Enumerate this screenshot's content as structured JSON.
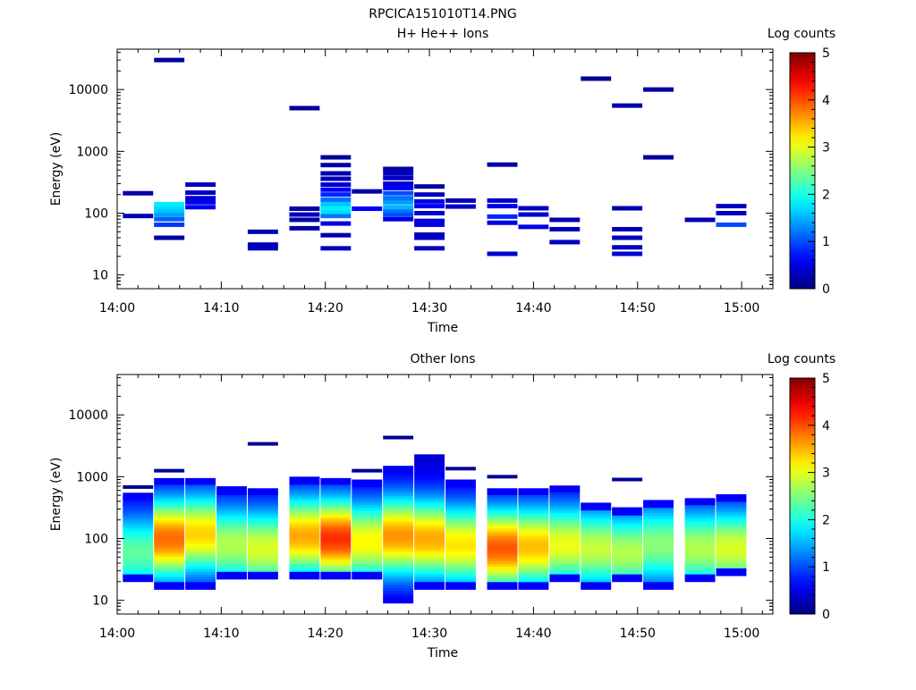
{
  "figure": {
    "title": "RPCICA151010T14.PNG"
  },
  "chart_data": [
    {
      "type": "heatmap",
      "title": "H+ He++ Ions",
      "xlabel": "Time",
      "ylabel": "Energy (eV)",
      "xlim": [
        "14:00",
        "15:03"
      ],
      "xticks": [
        "14:00",
        "14:10",
        "14:20",
        "14:30",
        "14:40",
        "14:50",
        "15:00"
      ],
      "ylim": [
        6,
        45000
      ],
      "yscale": "log",
      "yticks": [
        "10",
        "100",
        "1000",
        "10000"
      ],
      "colorbar": {
        "label": "Log counts",
        "range": [
          0,
          5
        ],
        "ticks": [
          "0",
          "1",
          "2",
          "3",
          "4",
          "5"
        ]
      },
      "time_bins": [
        "14:02",
        "14:05",
        "14:08",
        "14:11",
        "14:14",
        "14:18",
        "14:21",
        "14:24",
        "14:27",
        "14:30",
        "14:33",
        "14:37",
        "14:40",
        "14:43",
        "14:46",
        "14:49",
        "14:52",
        "14:56",
        "14:59",
        "15:02"
      ],
      "columns": [
        {
          "bin": 0,
          "cells": [
            [
              90,
              0.25
            ],
            [
              210,
              0.2
            ]
          ]
        },
        {
          "bin": 1,
          "cells": [
            [
              40,
              0.15
            ],
            [
              65,
              0.9
            ],
            [
              80,
              1.1
            ],
            [
              95,
              1.4
            ],
            [
              110,
              1.6
            ],
            [
              125,
              1.7
            ],
            [
              140,
              1.8
            ],
            [
              30000,
              0.15
            ]
          ]
        },
        {
          "bin": 2,
          "cells": [
            [
              125,
              0.6
            ],
            [
              150,
              0.5
            ],
            [
              175,
              0.45
            ],
            [
              215,
              0.35
            ],
            [
              290,
              0.3
            ]
          ]
        },
        {
          "bin": 4,
          "cells": [
            [
              27,
              0.3
            ],
            [
              31,
              0.25
            ],
            [
              50,
              0.25
            ]
          ]
        },
        {
          "bin": 5,
          "cells": [
            [
              57,
              0.2
            ],
            [
              78,
              0.2
            ],
            [
              95,
              0.25
            ],
            [
              118,
              0.2
            ],
            [
              5000,
              0.1
            ]
          ]
        },
        {
          "bin": 6,
          "cells": [
            [
              27,
              0.3
            ],
            [
              44,
              0.2
            ],
            [
              68,
              0.5
            ],
            [
              90,
              1.2
            ],
            [
              105,
              1.7
            ],
            [
              120,
              1.8
            ],
            [
              140,
              1.6
            ],
            [
              165,
              1.2
            ],
            [
              200,
              0.8
            ],
            [
              240,
              0.6
            ],
            [
              290,
              0.4
            ],
            [
              360,
              0.3
            ],
            [
              440,
              0.25
            ],
            [
              600,
              0.2
            ],
            [
              800,
              0.15
            ]
          ]
        },
        {
          "bin": 7,
          "cells": [
            [
              118,
              0.6
            ],
            [
              225,
              0.2
            ]
          ]
        },
        {
          "bin": 8,
          "cells": [
            [
              80,
              0.5
            ],
            [
              95,
              1.0
            ],
            [
              110,
              1.2
            ],
            [
              125,
              1.5
            ],
            [
              150,
              1.4
            ],
            [
              175,
              1.2
            ],
            [
              210,
              1.0
            ],
            [
              255,
              0.6
            ],
            [
              300,
              0.4
            ],
            [
              370,
              0.3
            ],
            [
              440,
              0.3
            ],
            [
              520,
              0.2
            ]
          ]
        },
        {
          "bin": 9,
          "cells": [
            [
              27,
              0.3
            ],
            [
              40,
              0.35
            ],
            [
              45,
              0.3
            ],
            [
              65,
              0.5
            ],
            [
              75,
              0.45
            ],
            [
              100,
              0.4
            ],
            [
              130,
              0.55
            ],
            [
              155,
              0.5
            ],
            [
              200,
              0.3
            ],
            [
              270,
              0.2
            ]
          ]
        },
        {
          "bin": 10,
          "cells": [
            [
              128,
              0.35
            ],
            [
              160,
              0.3
            ]
          ]
        },
        {
          "bin": 11,
          "cells": [
            [
              22,
              0.4
            ],
            [
              70,
              0.5
            ],
            [
              88,
              0.8
            ],
            [
              130,
              0.5
            ],
            [
              160,
              0.4
            ],
            [
              610,
              0.2
            ]
          ]
        },
        {
          "bin": 12,
          "cells": [
            [
              60,
              0.5
            ],
            [
              95,
              0.4
            ],
            [
              120,
              0.3
            ]
          ]
        },
        {
          "bin": 13,
          "cells": [
            [
              34,
              0.3
            ],
            [
              55,
              0.25
            ],
            [
              78,
              0.25
            ]
          ]
        },
        {
          "bin": 14,
          "cells": [
            [
              15000,
              0.1
            ]
          ]
        },
        {
          "bin": 15,
          "cells": [
            [
              22,
              0.4
            ],
            [
              28,
              0.3
            ],
            [
              40,
              0.3
            ],
            [
              55,
              0.25
            ],
            [
              120,
              0.25
            ],
            [
              5500,
              0.2
            ]
          ]
        },
        {
          "bin": 16,
          "cells": [
            [
              800,
              0.15
            ],
            [
              10000,
              0.15
            ]
          ]
        },
        {
          "bin": 17,
          "cells": [
            [
              78,
              0.25
            ]
          ]
        },
        {
          "bin": 18,
          "cells": [
            [
              65,
              1.0
            ],
            [
              100,
              0.3
            ],
            [
              130,
              0.3
            ]
          ]
        }
      ]
    },
    {
      "type": "heatmap",
      "title": "Other Ions",
      "xlabel": "Time",
      "ylabel": "Energy (eV)",
      "xlim": [
        "14:00",
        "15:03"
      ],
      "xticks": [
        "14:00",
        "14:10",
        "14:20",
        "14:30",
        "14:40",
        "14:50",
        "15:00"
      ],
      "ylim": [
        6,
        45000
      ],
      "yscale": "log",
      "yticks": [
        "10",
        "100",
        "1000",
        "10000"
      ],
      "colorbar": {
        "label": "Log counts",
        "range": [
          0,
          5
        ],
        "ticks": [
          "0",
          "1",
          "2",
          "3",
          "4",
          "5"
        ]
      },
      "time_bins": [
        "14:02",
        "14:05",
        "14:08",
        "14:11",
        "14:14",
        "14:18",
        "14:21",
        "14:24",
        "14:27",
        "14:30",
        "14:33",
        "14:37",
        "14:40",
        "14:43",
        "14:46",
        "14:49",
        "14:52",
        "14:56",
        "14:59",
        "15:02"
      ],
      "columns": [
        {
          "bin": 0,
          "emin": 20,
          "emax": 550,
          "peak": 2.0,
          "epeak": 60,
          "extra": [
            [
              680,
              0.1
            ]
          ]
        },
        {
          "bin": 1,
          "emin": 15,
          "emax": 950,
          "peak": 3.5,
          "epeak": 100,
          "extra": [
            [
              1250,
              0.15
            ]
          ]
        },
        {
          "bin": 2,
          "emin": 15,
          "emax": 950,
          "peak": 3.0,
          "epeak": 120,
          "extra": []
        },
        {
          "bin": 3,
          "emin": 22,
          "emax": 700,
          "peak": 2.4,
          "epeak": 80,
          "extra": []
        },
        {
          "bin": 4,
          "emin": 22,
          "emax": 650,
          "peak": 2.6,
          "epeak": 70,
          "extra": [
            [
              3400,
              0.1
            ]
          ]
        },
        {
          "bin": 5,
          "emin": 22,
          "emax": 1000,
          "peak": 3.2,
          "epeak": 110,
          "extra": []
        },
        {
          "bin": 6,
          "emin": 22,
          "emax": 950,
          "peak": 3.8,
          "epeak": 100,
          "extra": []
        },
        {
          "bin": 7,
          "emin": 22,
          "emax": 900,
          "peak": 2.8,
          "epeak": 90,
          "extra": [
            [
              1250,
              0.1
            ]
          ]
        },
        {
          "bin": 8,
          "emin": 9,
          "emax": 1500,
          "peak": 3.3,
          "epeak": 110,
          "extra": [
            [
              4300,
              0.1
            ]
          ]
        },
        {
          "bin": 9,
          "emin": 15,
          "emax": 2300,
          "peak": 3.2,
          "epeak": 100,
          "extra": []
        },
        {
          "bin": 10,
          "emin": 15,
          "emax": 900,
          "peak": 2.9,
          "epeak": 80,
          "extra": [
            [
              1350,
              0.1
            ]
          ]
        },
        {
          "bin": 11,
          "emin": 15,
          "emax": 650,
          "peak": 3.6,
          "epeak": 70,
          "extra": [
            [
              1000,
              0.1
            ]
          ]
        },
        {
          "bin": 12,
          "emin": 15,
          "emax": 650,
          "peak": 3.1,
          "epeak": 75,
          "extra": []
        },
        {
          "bin": 13,
          "emin": 20,
          "emax": 720,
          "peak": 2.7,
          "epeak": 80,
          "extra": []
        },
        {
          "bin": 14,
          "emin": 15,
          "emax": 380,
          "peak": 2.5,
          "epeak": 70,
          "extra": []
        },
        {
          "bin": 15,
          "emin": 20,
          "emax": 320,
          "peak": 2.4,
          "epeak": 60,
          "extra": [
            [
              900,
              0.15
            ]
          ]
        },
        {
          "bin": 16,
          "emin": 15,
          "emax": 420,
          "peak": 2.2,
          "epeak": 80,
          "extra": []
        },
        {
          "bin": 17,
          "emin": 20,
          "emax": 450,
          "peak": 2.4,
          "epeak": 70,
          "extra": []
        },
        {
          "bin": 18,
          "emin": 25,
          "emax": 520,
          "peak": 2.6,
          "epeak": 70,
          "extra": []
        }
      ]
    }
  ]
}
